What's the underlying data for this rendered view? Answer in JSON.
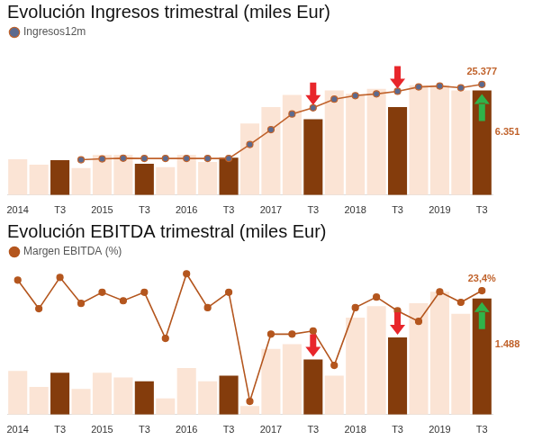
{
  "chart_data": [
    {
      "type": "bar",
      "title": "Evolución Ingresos trimestral (miles Eur)",
      "categories": [
        "2014",
        null,
        "T3",
        null,
        "2015",
        null,
        "T3",
        null,
        "2016",
        null,
        "T3",
        null,
        "2017",
        null,
        "T3",
        null,
        "2018",
        null,
        "T3",
        null,
        "2019",
        null,
        "T3"
      ],
      "series": [
        {
          "type": "bar",
          "colors": [
            "#fbe4d5",
            "#fbe4d5",
            "#843c0c",
            "#fbe4d5",
            "#fbe4d5",
            "#fbe4d5",
            "#843c0c",
            "#fbe4d5",
            "#fbe4d5",
            "#fbe4d5",
            "#843c0c",
            "#fbe4d5",
            "#fbe4d5",
            "#fbe4d5",
            "#843c0c",
            "#fbe4d5",
            "#fbe4d5",
            "#fbe4d5",
            "#843c0c",
            "#fbe4d5",
            "#fbe4d5",
            "#fbe4d5",
            "#843c0c"
          ],
          "values": [
            2170,
            1850,
            2120,
            1640,
            2430,
            2430,
            1900,
            1690,
            2430,
            2010,
            2270,
            4340,
            5340,
            6080,
            4600,
            6350,
            6140,
            6450,
            5340,
            6660,
            6660,
            6350,
            6351
          ],
          "value_labels": [
            null,
            null,
            null,
            null,
            null,
            null,
            null,
            null,
            null,
            null,
            null,
            null,
            null,
            null,
            null,
            null,
            null,
            null,
            null,
            null,
            null,
            null,
            "6.351"
          ]
        },
        {
          "name": "Ingresos12m",
          "type": "line",
          "axis": "y2",
          "color": "#c0622b",
          "marker": "circle",
          "values": [
            null,
            null,
            null,
            8100,
            8300,
            8450,
            8400,
            8400,
            8400,
            8400,
            8400,
            11600,
            15000,
            18600,
            20000,
            22000,
            22800,
            23200,
            23800,
            24800,
            25000,
            24600,
            25377
          ],
          "value_labels": [
            null,
            null,
            null,
            null,
            null,
            null,
            null,
            null,
            null,
            null,
            null,
            null,
            null,
            null,
            null,
            null,
            null,
            null,
            null,
            null,
            null,
            null,
            "25.377"
          ]
        }
      ],
      "ylim": [
        0,
        9000
      ],
      "y2lim": [
        0,
        34000
      ],
      "tick_labels": "x",
      "grid": false,
      "legend": "top-left"
    },
    {
      "type": "bar",
      "title": "Evolución EBITDA trimestral (miles Eur)",
      "categories": [
        "2014",
        null,
        "T3",
        null,
        "2015",
        null,
        "T3",
        null,
        "2016",
        null,
        "T3",
        null,
        "2017",
        null,
        "T3",
        null,
        "2018",
        null,
        "T3",
        null,
        "2019",
        null,
        "T3"
      ],
      "series": [
        {
          "type": "bar",
          "colors": [
            "#fbe4d5",
            "#fbe4d5",
            "#843c0c",
            "#fbe4d5",
            "#fbe4d5",
            "#fbe4d5",
            "#843c0c",
            "#fbe4d5",
            "#fbe4d5",
            "#fbe4d5",
            "#843c0c",
            "#fbe4d5",
            "#fbe4d5",
            "#fbe4d5",
            "#843c0c",
            "#fbe4d5",
            "#fbe4d5",
            "#fbe4d5",
            "#843c0c",
            "#fbe4d5",
            "#fbe4d5",
            "#fbe4d5",
            "#843c0c"
          ],
          "values": [
            560,
            355,
            537,
            330,
            537,
            476,
            427,
            207,
            598,
            427,
            500,
            110,
            842,
            903,
            708,
            500,
            1244,
            1390,
            988,
            1427,
            1574,
            1293,
            1488
          ],
          "value_labels": [
            null,
            null,
            null,
            null,
            null,
            null,
            null,
            null,
            null,
            null,
            null,
            null,
            null,
            null,
            null,
            null,
            null,
            null,
            null,
            null,
            null,
            null,
            "1.488"
          ]
        },
        {
          "name": "Margen EBITDA (%)",
          "type": "line",
          "axis": "y2",
          "color": "#b4561e",
          "marker": "circle",
          "values": [
            25.4,
            20.0,
            25.9,
            21.0,
            23.1,
            21.5,
            23.1,
            14.4,
            26.6,
            20.2,
            23.1,
            2.5,
            15.2,
            15.2,
            15.8,
            9.3,
            20.2,
            22.2,
            19.6,
            17.6,
            23.2,
            21.2,
            23.4
          ],
          "value_labels": [
            null,
            null,
            null,
            null,
            null,
            null,
            null,
            null,
            null,
            null,
            null,
            null,
            null,
            null,
            null,
            null,
            null,
            null,
            null,
            null,
            null,
            null,
            "23,4%"
          ]
        }
      ],
      "ylim": [
        0,
        1900
      ],
      "y2lim": [
        0,
        28
      ],
      "tick_labels": "x",
      "grid": false,
      "legend": "top-left"
    }
  ]
}
